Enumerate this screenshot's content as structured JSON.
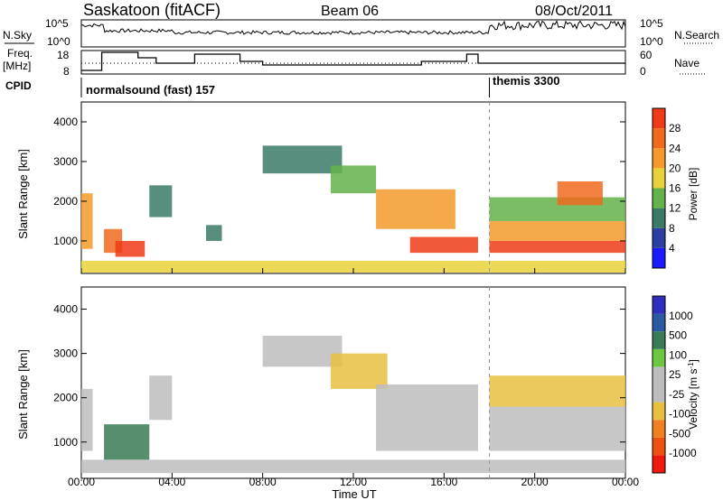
{
  "header": {
    "station": "Saskatoon (fitACF)",
    "beam": "Beam 06",
    "date": "08/Oct/2011"
  },
  "status_panel": {
    "nsky_label": "N.Sky",
    "nsearch_label": "N.Search",
    "nsky_ticks": [
      "10^5",
      "10^0"
    ],
    "nsearch_ticks": [
      "10^5",
      "10^0"
    ],
    "freq_label": "Freq.",
    "freq_unit": "[MHz]",
    "freq_ticks": [
      18,
      8
    ],
    "nave_label": "Nave",
    "nave_ticks": [
      60,
      0
    ],
    "cpid_label": "CPID",
    "cpid_segments": [
      {
        "name": "normalsound (fast) 157",
        "start_hour": 0
      },
      {
        "name": "themis 3300",
        "start_hour": 18
      }
    ]
  },
  "colors": {
    "power_scale": [
      "#1a1aff",
      "#2a3f9f",
      "#3a7a66",
      "#64b24a",
      "#e7d23a",
      "#f59a2a",
      "#f06a1e",
      "#ee3a16"
    ],
    "velocity_scale": [
      "#2f2fbf",
      "#2a5aa0",
      "#3a7a55",
      "#6cc640",
      "#bdbdbd",
      "#bdbdbd",
      "#e8c040",
      "#f08020",
      "#f05010",
      "#ee1a10"
    ]
  },
  "chart_data": [
    {
      "type": "heatmap",
      "name": "power",
      "ylabel": "Slant Range [km]",
      "ylim": [
        180,
        4500
      ],
      "yticks": [
        1000,
        2000,
        3000,
        4000
      ],
      "xlim": [
        0,
        24
      ],
      "colorbar": {
        "label": "Power [dB]",
        "range": [
          0,
          32
        ],
        "ticks": [
          4,
          8,
          12,
          16,
          20,
          24,
          28
        ]
      },
      "regions": [
        {
          "t0": 0.0,
          "t1": 0.5,
          "r0": 800,
          "r1": 2200,
          "value": 22
        },
        {
          "t0": 1.0,
          "t1": 1.8,
          "r0": 700,
          "r1": 1300,
          "value": 26
        },
        {
          "t0": 1.5,
          "t1": 2.8,
          "r0": 600,
          "r1": 1000,
          "value": 28
        },
        {
          "t0": 3.0,
          "t1": 4.0,
          "r0": 1600,
          "r1": 2400,
          "value": 10
        },
        {
          "t0": 5.5,
          "t1": 6.2,
          "r0": 1000,
          "r1": 1400,
          "value": 8
        },
        {
          "t0": 8.0,
          "t1": 11.5,
          "r0": 2700,
          "r1": 3400,
          "value": 8
        },
        {
          "t0": 11.0,
          "t1": 13.0,
          "r0": 2200,
          "r1": 2900,
          "value": 14
        },
        {
          "t0": 13.0,
          "t1": 16.5,
          "r0": 1300,
          "r1": 2300,
          "value": 20
        },
        {
          "t0": 14.5,
          "t1": 17.5,
          "r0": 700,
          "r1": 1100,
          "value": 28
        },
        {
          "t0": 18.0,
          "t1": 24.0,
          "r0": 700,
          "r1": 1000,
          "value": 28
        },
        {
          "t0": 18.0,
          "t1": 24.0,
          "r0": 1000,
          "r1": 1500,
          "value": 20
        },
        {
          "t0": 18.0,
          "t1": 24.0,
          "r0": 1500,
          "r1": 2100,
          "value": 12
        },
        {
          "t0": 21.0,
          "t1": 23.0,
          "r0": 1900,
          "r1": 2500,
          "value": 26
        },
        {
          "t0": 0.0,
          "t1": 24.0,
          "r0": 200,
          "r1": 500,
          "value": 16
        }
      ]
    },
    {
      "type": "heatmap",
      "name": "velocity",
      "ylabel": "Slant Range [km]",
      "ylim": [
        180,
        4500
      ],
      "yticks": [
        1000,
        2000,
        3000,
        4000
      ],
      "xlim": [
        0,
        24
      ],
      "xticks": [
        "00:00",
        "04:00",
        "08:00",
        "12:00",
        "16:00",
        "20:00",
        "00:00"
      ],
      "xlabel": "Time UT",
      "colorbar": {
        "label": "Velocity [m s^-1]",
        "ticks": [
          1000,
          500,
          100,
          25,
          -25,
          -100,
          -500,
          -1000
        ]
      },
      "regions": [
        {
          "t0": 0.0,
          "t1": 0.5,
          "r0": 800,
          "r1": 2200,
          "value": 10
        },
        {
          "t0": 1.0,
          "t1": 3.0,
          "r0": 600,
          "r1": 1400,
          "value": 150
        },
        {
          "t0": 3.0,
          "t1": 4.0,
          "r0": 1500,
          "r1": 2500,
          "value": 0
        },
        {
          "t0": 8.0,
          "t1": 11.5,
          "r0": 2700,
          "r1": 3400,
          "value": 0
        },
        {
          "t0": 11.0,
          "t1": 13.5,
          "r0": 2200,
          "r1": 3000,
          "value": -150
        },
        {
          "t0": 13.0,
          "t1": 17.5,
          "r0": 800,
          "r1": 2300,
          "value": 0
        },
        {
          "t0": 18.0,
          "t1": 24.0,
          "r0": 800,
          "r1": 1800,
          "value": 0
        },
        {
          "t0": 18.0,
          "t1": 24.0,
          "r0": 1800,
          "r1": 2500,
          "value": -150
        },
        {
          "t0": 0.0,
          "t1": 24.0,
          "r0": 300,
          "r1": 600,
          "value": -60
        }
      ]
    }
  ]
}
